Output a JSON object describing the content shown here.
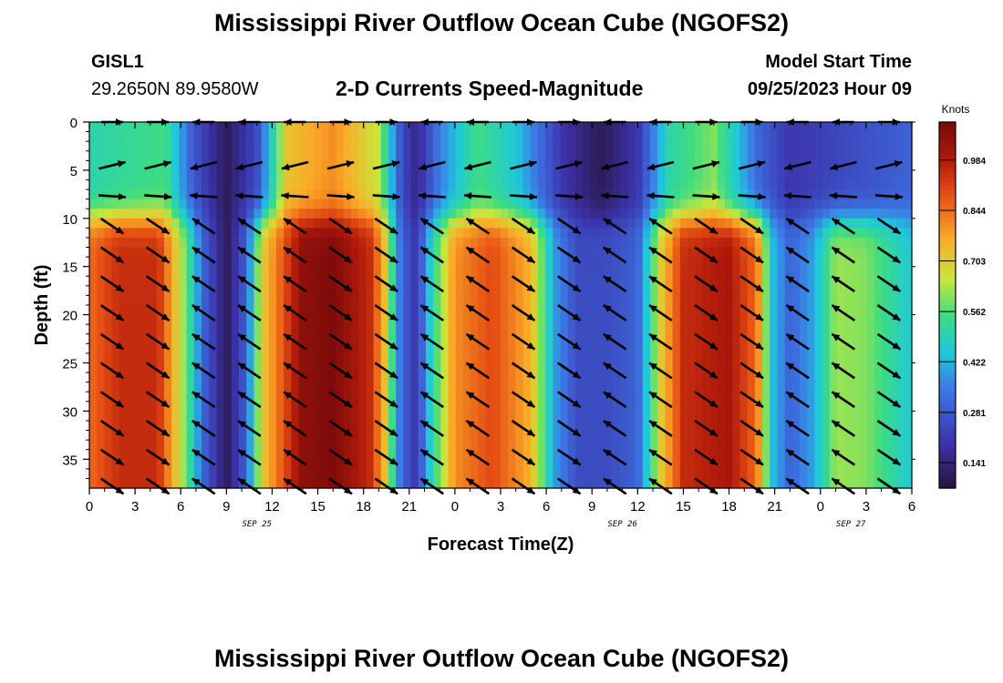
{
  "chart_data": {
    "type": "heatmap",
    "title": "Mississippi River Outflow Ocean Cube (NGOFS2)",
    "subtitle": "2-D Currents Speed-Magnitude",
    "station": {
      "id": "GISL1",
      "location": "29.2650N  89.9580W"
    },
    "model_start": {
      "label": "Model Start Time",
      "value": "09/25/2023 Hour 09"
    },
    "xlabel": "Forecast Time(Z)",
    "ylabel": "Depth (ft)",
    "x_ticks": [
      "0",
      "3",
      "6",
      "9",
      "12",
      "15",
      "18",
      "21",
      "0",
      "3",
      "6",
      "9",
      "12",
      "15",
      "18",
      "21",
      "0",
      "3",
      "6"
    ],
    "x_range_hours": [
      0,
      54
    ],
    "date_labels": [
      {
        "hour": 11,
        "text": "SEP 25"
      },
      {
        "hour": 35,
        "text": "SEP 26"
      },
      {
        "hour": 50,
        "text": "SEP 27"
      }
    ],
    "y_ticks": [
      "0",
      "5",
      "10",
      "15",
      "20",
      "25",
      "30",
      "35"
    ],
    "y_range_ft": [
      0,
      38
    ],
    "colorbar": {
      "label": "Knots",
      "ticks": [
        "0.984",
        "0.844",
        "0.703",
        "0.562",
        "0.422",
        "0.281",
        "0.141"
      ],
      "range": [
        0.07,
        1.09
      ]
    },
    "upper_layer_depth_ft": 10,
    "upper_speed_knots": [
      {
        "hour": 0,
        "value": 0.5
      },
      {
        "hour": 5,
        "value": 0.55
      },
      {
        "hour": 6.8,
        "value": 0.28
      },
      {
        "hour": 9,
        "value": 0.1
      },
      {
        "hour": 11,
        "value": 0.25
      },
      {
        "hour": 13,
        "value": 0.72
      },
      {
        "hour": 16,
        "value": 0.8
      },
      {
        "hour": 19,
        "value": 0.65
      },
      {
        "hour": 20.5,
        "value": 0.25
      },
      {
        "hour": 21.5,
        "value": 0.15
      },
      {
        "hour": 23,
        "value": 0.35
      },
      {
        "hour": 25.5,
        "value": 0.55
      },
      {
        "hour": 28,
        "value": 0.45
      },
      {
        "hour": 31,
        "value": 0.2
      },
      {
        "hour": 33.5,
        "value": 0.1
      },
      {
        "hour": 36,
        "value": 0.2
      },
      {
        "hour": 38,
        "value": 0.5
      },
      {
        "hour": 41,
        "value": 0.6
      },
      {
        "hour": 44,
        "value": 0.3
      },
      {
        "hour": 46,
        "value": 0.2
      },
      {
        "hour": 50,
        "value": 0.25
      },
      {
        "hour": 54,
        "value": 0.3
      }
    ],
    "lower_speed_knots": [
      {
        "hour": 0,
        "value": 0.85
      },
      {
        "hour": 2,
        "value": 0.95
      },
      {
        "hour": 4.5,
        "value": 0.95
      },
      {
        "hour": 6.5,
        "value": 0.55
      },
      {
        "hour": 7.5,
        "value": 0.3
      },
      {
        "hour": 9,
        "value": 0.1
      },
      {
        "hour": 10.3,
        "value": 0.3
      },
      {
        "hour": 11.3,
        "value": 0.7
      },
      {
        "hour": 14,
        "value": 1.05
      },
      {
        "hour": 16,
        "value": 1.08
      },
      {
        "hour": 18.5,
        "value": 0.95
      },
      {
        "hour": 19.5,
        "value": 0.7
      },
      {
        "hour": 20.5,
        "value": 0.3
      },
      {
        "hour": 21.5,
        "value": 0.2
      },
      {
        "hour": 22.5,
        "value": 0.5
      },
      {
        "hour": 24,
        "value": 0.8
      },
      {
        "hour": 26.5,
        "value": 0.9
      },
      {
        "hour": 29,
        "value": 0.75
      },
      {
        "hour": 30.5,
        "value": 0.4
      },
      {
        "hour": 32,
        "value": 0.25
      },
      {
        "hour": 34,
        "value": 0.25
      },
      {
        "hour": 36,
        "value": 0.3
      },
      {
        "hour": 37.5,
        "value": 0.7
      },
      {
        "hour": 39,
        "value": 0.95
      },
      {
        "hour": 42,
        "value": 1.0
      },
      {
        "hour": 43.8,
        "value": 0.85
      },
      {
        "hour": 44.8,
        "value": 0.45
      },
      {
        "hour": 46,
        "value": 0.3
      },
      {
        "hour": 47.5,
        "value": 0.4
      },
      {
        "hour": 49,
        "value": 0.62
      },
      {
        "hour": 51,
        "value": 0.6
      },
      {
        "hour": 54,
        "value": 0.45
      }
    ],
    "vector_columns_hours": [
      1.5,
      4.5,
      7.5,
      10.5,
      13.5,
      16.5,
      19.5,
      22.5,
      25.5,
      28.5,
      31.5,
      34.5,
      37.5,
      40.5,
      43.5,
      46.5,
      49.5,
      52.5
    ],
    "vector_rows_ft": [
      0,
      4.5,
      7.7,
      10.8,
      13.8,
      16.8,
      19.8,
      22.8,
      25.8,
      28.8,
      31.8,
      34.8,
      37.8
    ],
    "grid": false,
    "legend": "colorbar-right"
  },
  "footer": {
    "title": "Mississippi River Outflow Ocean Cube (NGOFS2)"
  }
}
